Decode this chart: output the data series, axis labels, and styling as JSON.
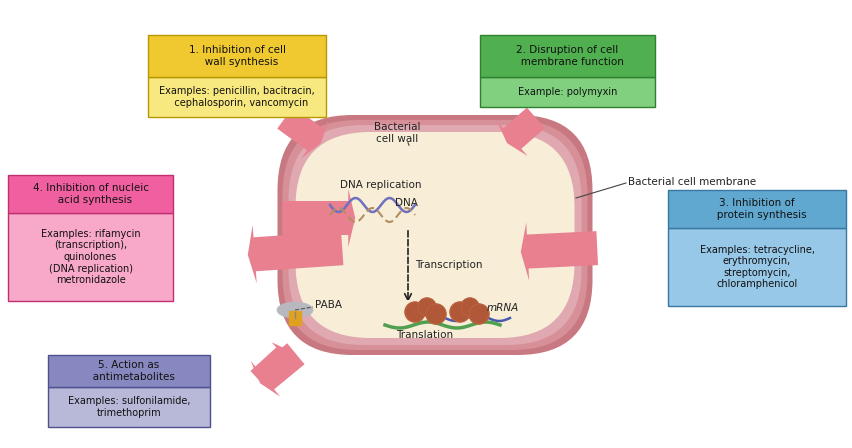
{
  "bg_color": "#ffffff",
  "box1_title": "1. Inhibition of cell\n   wall synthesis",
  "box1_examples": "Examples: penicillin, bacitracin,\n   cephalosporin, vancomycin",
  "box1_title_bg": "#f0c830",
  "box1_examples_bg": "#f8e880",
  "box1_border": "#b89800",
  "box2_title": "2. Disruption of cell\n   membrane function",
  "box2_examples": "Example: polymyxin",
  "box2_title_bg": "#50b050",
  "box2_examples_bg": "#80d080",
  "box2_border": "#308030",
  "box3_title": "3. Inhibition of\n   protein synthesis",
  "box3_examples": "Examples: tetracycline,\nerythromycin,\nstreptomycin,\nchloramphenicol",
  "box3_title_bg": "#60a8d0",
  "box3_examples_bg": "#98c8e8",
  "box3_border": "#3878a0",
  "box4_title": "4. Inhibition of nucleic\n   acid synthesis",
  "box4_examples": "Examples: rifamycin\n(transcription),\nquinolones\n(DNA replication)\nmetronidazole",
  "box4_title_bg": "#f060a0",
  "box4_examples_bg": "#f8a8c8",
  "box4_border": "#c03070",
  "box5_title": "5. Action as\n   antimetabolites",
  "box5_examples": "Examples: sulfonilamide,\ntrimethoprim",
  "box5_title_bg": "#8888c0",
  "box5_examples_bg": "#b8b8d8",
  "box5_border": "#505090",
  "cell_outer": "#d49098",
  "cell_wall": "#c87880",
  "cell_membrane": "#e0a0a8",
  "cell_interior": "#f8eed8",
  "arrow_color": "#e88090",
  "arrow_fill": "#e88090",
  "label_bacterial_wall": "Bacterial\ncell wall",
  "label_bacterial_membrane": "Bacterial cell membrane",
  "label_dna_replication": "DNA replication",
  "label_dna": "DNA",
  "label_transcription": "Transcription",
  "label_translation": "Translation",
  "label_mrna": "mRNA",
  "label_paba": "PABA"
}
